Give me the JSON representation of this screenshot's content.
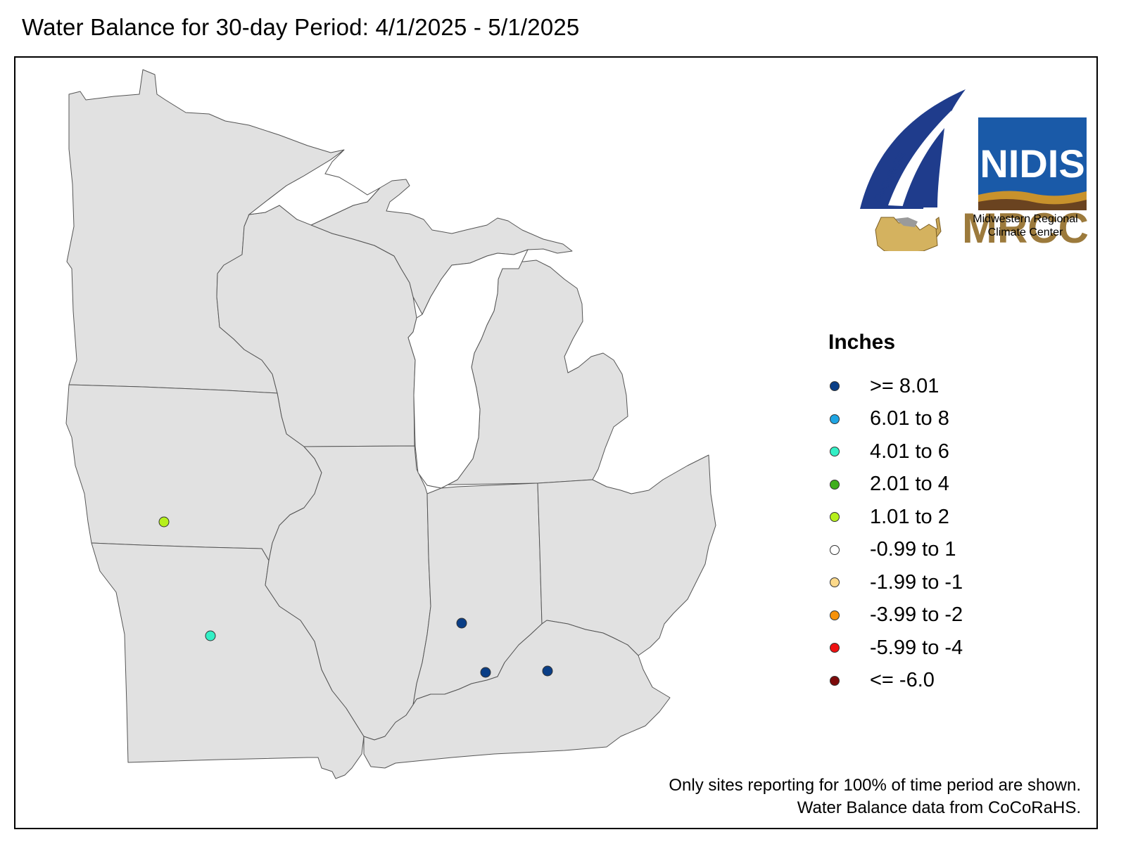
{
  "title": "Water Balance for 30-day Period: 4/1/2025 - 5/1/2025",
  "legend": {
    "title": "Inches",
    "items": [
      {
        "label": ">= 8.01",
        "color": "#0a3e86"
      },
      {
        "label": "6.01 to 8",
        "color": "#1fa5e3"
      },
      {
        "label": "4.01 to 6",
        "color": "#33f0c6"
      },
      {
        "label": "2.01 to 4",
        "color": "#3fae1d"
      },
      {
        "label": "1.01 to 2",
        "color": "#b6f01c"
      },
      {
        "label": "-0.99 to 1",
        "color": "#ffffff"
      },
      {
        "label": "-1.99 to -1",
        "color": "#fcd98a"
      },
      {
        "label": "-3.99 to -2",
        "color": "#f7920b"
      },
      {
        "label": "-5.99 to -4",
        "color": "#ef1111"
      },
      {
        "label": "<= -6.0",
        "color": "#7d0a0a"
      }
    ]
  },
  "sites": [
    {
      "category": "1.01 to 2",
      "color": "#b6f01c"
    },
    {
      "category": "4.01 to 6",
      "color": "#33f0c6"
    },
    {
      "category": ">= 8.01",
      "color": "#0a3e86"
    },
    {
      "category": ">= 8.01",
      "color": "#0a3e86"
    },
    {
      "category": ">= 8.01",
      "color": "#0a3e86"
    }
  ],
  "logos": {
    "cocorahs": "CoCoRaHS",
    "nidis": "NIDIS",
    "mrcc": "MRCC",
    "mrcc_line1": "Midwestern Regional",
    "mrcc_line2": "Climate Center"
  },
  "footnote": {
    "line1": "Only sites reporting for 100% of time period are shown.",
    "line2": "Water Balance data from CoCoRaHS."
  }
}
